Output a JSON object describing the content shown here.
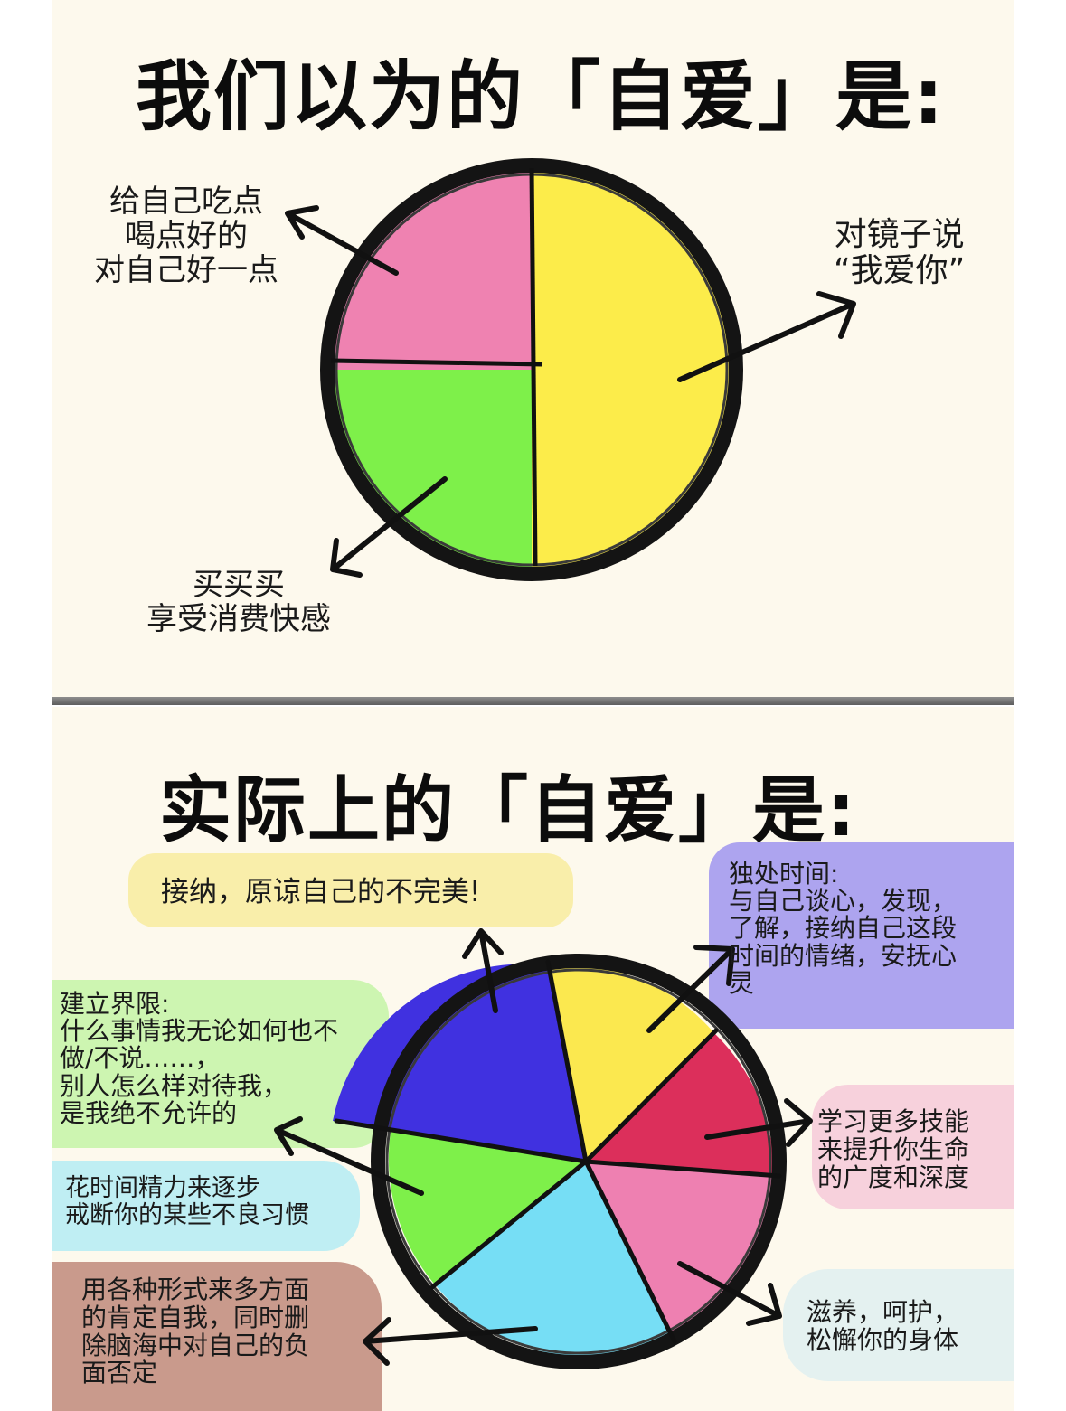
{
  "top": {
    "title": "我们以为的「自爱」是:",
    "labels": {
      "food": "给自己吃点\n喝点好的\n对自己好一点",
      "mirror": "对镜子说\n“我爱你”",
      "shopping": "买买买\n享受消费快感"
    },
    "segments": [
      {
        "key": "mirror",
        "fraction": 0.5,
        "color": "#fcec4a"
      },
      {
        "key": "shopping",
        "fraction": 0.25,
        "color": "#7ef04a"
      },
      {
        "key": "food",
        "fraction": 0.25,
        "color": "#ef82b1"
      }
    ]
  },
  "bottom": {
    "title": "实际上的「自爱」是:",
    "labels": {
      "accept": "接纳，原谅自己的不完美!",
      "alone": "独处时间:\n与自己谈心，发现，\n了解，接纳自己这段\n时间的情绪，安抚心\n灵",
      "boundary": "建立界限:\n什么事情我无论如何也不\n做/不说……，\n别人怎么样对待我，\n是我绝不允许的",
      "skills": "学习更多技能\n来提升你生命\n的广度和深度",
      "habits": "花时间精力来逐步\n戒断你的某些不良习惯",
      "affirm": "用各种形式来多方面\n的肯定自我，同时删\n除脑海中对自己的负\n面否定",
      "body": "滋养，呵护，\n松懈你的身体"
    },
    "segment_colors": {
      "blue": "#4031e0",
      "yellow": "#fbe84f",
      "red": "#dc2f5b",
      "pink": "#ee80b1",
      "cyan": "#76def5",
      "green": "#7ef04a"
    },
    "box_colors": {
      "accept": "#f9eeaa",
      "alone": "#ada4ef",
      "boundary": "#cdf5b1",
      "skills": "#f7d1dc",
      "habits": "#bfeef3",
      "affirm": "#c99a8c",
      "body": "#e4f1f0"
    }
  }
}
